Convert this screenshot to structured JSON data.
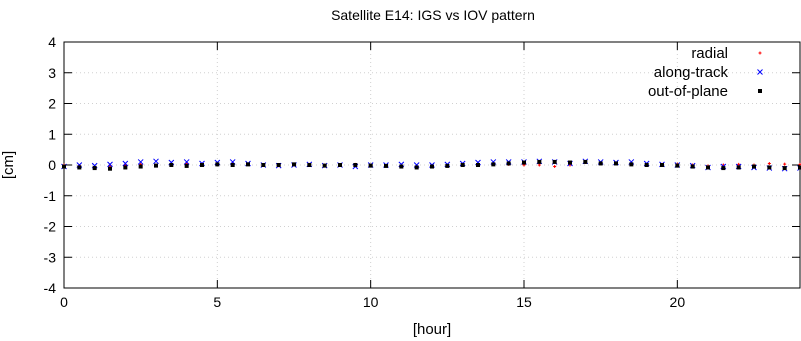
{
  "chart_data": {
    "type": "scatter",
    "title": "Satellite E14: IGS vs IOV pattern",
    "xlabel": "[hour]",
    "ylabel": "[cm]",
    "xlim": [
      0,
      24
    ],
    "ylim": [
      -4,
      4
    ],
    "xticks": [
      "0",
      "5",
      "10",
      "15",
      "20"
    ],
    "yticks": [
      "-4",
      "-3",
      "-2",
      "-1",
      "0",
      "1",
      "2",
      "3",
      "4"
    ],
    "grid": true,
    "legend_position": "top-right",
    "series": [
      {
        "name": "radial",
        "color": "#ff0000",
        "marker": "plus",
        "x": [
          0,
          0.5,
          1,
          1.5,
          2,
          2.5,
          3,
          3.5,
          4,
          4.5,
          5,
          5.5,
          6,
          6.5,
          7,
          7.5,
          8,
          8.5,
          9,
          9.5,
          10,
          10.5,
          11,
          11.5,
          12,
          12.5,
          13,
          13.5,
          14,
          14.5,
          15,
          15.5,
          16,
          16.5,
          17,
          17.5,
          18,
          18.5,
          19,
          19.5,
          20,
          20.5,
          21,
          21.5,
          22,
          22.5,
          23,
          23.5,
          24
        ],
        "y": [
          0.0,
          -0.02,
          -0.05,
          -0.03,
          0.0,
          0.02,
          0.0,
          0.03,
          0.05,
          0.02,
          0.03,
          0.05,
          0.02,
          0.0,
          -0.02,
          0.0,
          0.02,
          0.0,
          0.0,
          0.02,
          0.0,
          -0.02,
          0.0,
          -0.03,
          -0.02,
          0.0,
          0.02,
          0.05,
          0.03,
          0.02,
          0.0,
          0.0,
          -0.05,
          0.0,
          0.08,
          0.05,
          0.05,
          0.03,
          0.0,
          0.02,
          0.03,
          0.0,
          -0.03,
          0.0,
          0.02,
          0.0,
          0.05,
          0.03,
          0.02
        ]
      },
      {
        "name": "along-track",
        "color": "#0000ff",
        "marker": "cross",
        "x": [
          0,
          0.5,
          1,
          1.5,
          2,
          2.5,
          3,
          3.5,
          4,
          4.5,
          5,
          5.5,
          6,
          6.5,
          7,
          7.5,
          8,
          8.5,
          9,
          9.5,
          10,
          10.5,
          11,
          11.5,
          12,
          12.5,
          13,
          13.5,
          14,
          14.5,
          15,
          15.5,
          16,
          16.5,
          17,
          17.5,
          18,
          18.5,
          19,
          19.5,
          20,
          20.5,
          21,
          21.5,
          22,
          22.5,
          23,
          23.5,
          24
        ],
        "y": [
          -0.05,
          0.0,
          -0.02,
          0.02,
          0.05,
          0.1,
          0.12,
          0.08,
          0.1,
          0.05,
          0.08,
          0.1,
          0.05,
          0.0,
          -0.02,
          0.0,
          0.02,
          -0.02,
          0.0,
          -0.05,
          0.0,
          0.0,
          0.02,
          0.0,
          0.0,
          0.02,
          0.05,
          0.08,
          0.1,
          0.1,
          0.1,
          0.12,
          0.1,
          0.05,
          0.12,
          0.1,
          0.08,
          0.1,
          0.05,
          0.02,
          0.0,
          -0.02,
          -0.08,
          -0.05,
          -0.05,
          -0.08,
          -0.1,
          -0.12,
          -0.1
        ]
      },
      {
        "name": "out-of-plane",
        "color": "#000000",
        "marker": "square",
        "x": [
          0,
          0.5,
          1,
          1.5,
          2,
          2.5,
          3,
          3.5,
          4,
          4.5,
          5,
          5.5,
          6,
          6.5,
          7,
          7.5,
          8,
          8.5,
          9,
          9.5,
          10,
          10.5,
          11,
          11.5,
          12,
          12.5,
          13,
          13.5,
          14,
          14.5,
          15,
          15.5,
          16,
          16.5,
          17,
          17.5,
          18,
          18.5,
          19,
          19.5,
          20,
          20.5,
          21,
          21.5,
          22,
          22.5,
          23,
          23.5,
          24
        ],
        "y": [
          -0.05,
          -0.08,
          -0.1,
          -0.12,
          -0.08,
          -0.05,
          -0.02,
          0.0,
          -0.03,
          0.0,
          0.02,
          0.0,
          0.02,
          0.0,
          0.0,
          0.02,
          0.0,
          -0.02,
          0.0,
          0.0,
          -0.02,
          -0.03,
          -0.05,
          -0.08,
          -0.05,
          -0.03,
          0.0,
          0.0,
          0.02,
          0.05,
          0.08,
          0.1,
          0.1,
          0.08,
          0.1,
          0.05,
          0.05,
          0.02,
          0.0,
          0.0,
          -0.02,
          -0.05,
          -0.08,
          -0.1,
          -0.08,
          -0.05,
          -0.08,
          -0.1,
          -0.08
        ]
      }
    ]
  }
}
